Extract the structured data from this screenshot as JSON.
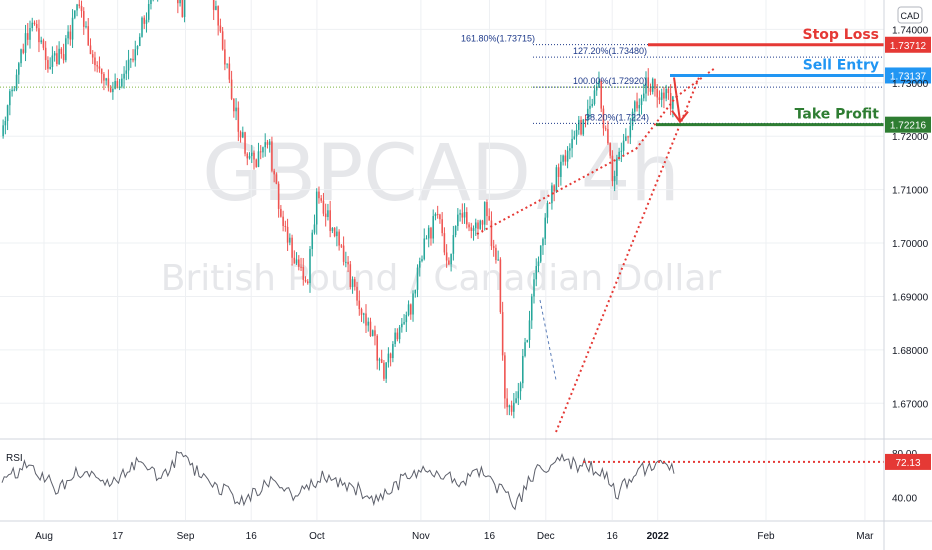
{
  "watermark": {
    "symbol": "GBPCAD, 4h",
    "description": "British Pound / Canadian Dollar"
  },
  "currency_box": "CAD",
  "annotations": {
    "stop_loss": {
      "label": "Stop Loss",
      "price": 1.73712,
      "badge": "1.73712",
      "color": "#e53935"
    },
    "sell_entry": {
      "label": "Sell Entry",
      "price": 1.73137,
      "badge": "1.73137",
      "color": "#2196f3"
    },
    "take_profit": {
      "label": "Take Profit",
      "price": 1.72216,
      "badge": "1.72216",
      "color": "#2e7d32"
    }
  },
  "fib_levels": [
    {
      "label": "161.80%(1.73715)",
      "price": 1.73715
    },
    {
      "label": "127.20%(1.73480)",
      "price": 1.7348
    },
    {
      "label": "100.00%(1.72920)",
      "price": 1.7292
    },
    {
      "label": "38.20%(1.7224)",
      "price": 1.7224
    }
  ],
  "rsi": {
    "title": "RSI",
    "value": 72.13,
    "badge": "72.13",
    "ticks": [
      {
        "value": 80,
        "label": "80.00"
      },
      {
        "value": 40,
        "label": "40.00"
      }
    ]
  },
  "colors": {
    "up": "#26a69a",
    "down": "#ef5350",
    "rsi_line": "#5d606b",
    "trend": "#e53935",
    "axis_text": "#131722",
    "grid": "#eef0f3"
  },
  "chart_data": {
    "type": "candlestick",
    "symbol": "GBPCAD",
    "interval": "4h",
    "price_axis": {
      "ticks": [
        {
          "value": 1.74,
          "label": "1.74000"
        },
        {
          "value": 1.73,
          "label": "1.73000"
        },
        {
          "value": 1.72,
          "label": "1.72000"
        },
        {
          "value": 1.71,
          "label": "1.71000"
        },
        {
          "value": 1.7,
          "label": "1.70000"
        },
        {
          "value": 1.69,
          "label": "1.69000"
        },
        {
          "value": 1.68,
          "label": "1.68000"
        },
        {
          "value": 1.67,
          "label": "1.67000"
        }
      ],
      "range": [
        1.6635,
        1.7455
      ]
    },
    "time_axis": {
      "labels": [
        "Aug",
        "17",
        "Sep",
        "16",
        "Oct",
        "Nov",
        "16",
        "Dec",
        "16",
        "2022",
        "Feb",
        "Mar"
      ],
      "label_positions": [
        0.0,
        0.102,
        0.196,
        0.287,
        0.378,
        0.522,
        0.617,
        0.695,
        0.787,
        0.85,
        1.0,
        1.137
      ]
    },
    "rsi_range": [
      20,
      90
    ],
    "keypoints": [
      [
        0.0,
        1.72
      ],
      [
        0.025,
        1.733
      ],
      [
        0.045,
        1.742
      ],
      [
        0.07,
        1.733
      ],
      [
        0.095,
        1.736
      ],
      [
        0.115,
        1.744
      ],
      [
        0.14,
        1.733
      ],
      [
        0.165,
        1.728
      ],
      [
        0.19,
        1.733
      ],
      [
        0.215,
        1.743
      ],
      [
        0.245,
        1.752
      ],
      [
        0.27,
        1.744
      ],
      [
        0.29,
        1.75
      ],
      [
        0.31,
        1.749
      ],
      [
        0.33,
        1.737
      ],
      [
        0.35,
        1.724
      ],
      [
        0.37,
        1.715
      ],
      [
        0.4,
        1.718
      ],
      [
        0.415,
        1.705
      ],
      [
        0.435,
        1.698
      ],
      [
        0.455,
        1.692
      ],
      [
        0.47,
        1.708
      ],
      [
        0.49,
        1.704
      ],
      [
        0.51,
        1.697
      ],
      [
        0.53,
        1.69
      ],
      [
        0.55,
        1.684
      ],
      [
        0.57,
        1.675
      ],
      [
        0.59,
        1.683
      ],
      [
        0.61,
        1.688
      ],
      [
        0.63,
        1.7
      ],
      [
        0.65,
        1.705
      ],
      [
        0.665,
        1.695
      ],
      [
        0.685,
        1.707
      ],
      [
        0.7,
        1.701
      ],
      [
        0.72,
        1.706
      ],
      [
        0.74,
        1.696
      ],
      [
        0.75,
        1.671
      ],
      [
        0.765,
        1.668
      ],
      [
        0.79,
        1.689
      ],
      [
        0.81,
        1.705
      ],
      [
        0.83,
        1.714
      ],
      [
        0.85,
        1.72
      ],
      [
        0.87,
        1.723
      ],
      [
        0.89,
        1.729
      ],
      [
        0.9,
        1.72
      ],
      [
        0.91,
        1.712
      ],
      [
        0.925,
        1.718
      ],
      [
        0.94,
        1.724
      ],
      [
        0.96,
        1.73
      ],
      [
        1.0,
        1.7262
      ]
    ],
    "rsi_keypoints": [
      [
        0.0,
        54
      ],
      [
        0.04,
        72
      ],
      [
        0.08,
        48
      ],
      [
        0.12,
        66
      ],
      [
        0.16,
        50
      ],
      [
        0.2,
        70
      ],
      [
        0.24,
        60
      ],
      [
        0.26,
        76
      ],
      [
        0.3,
        62
      ],
      [
        0.33,
        46
      ],
      [
        0.36,
        38
      ],
      [
        0.4,
        56
      ],
      [
        0.44,
        42
      ],
      [
        0.48,
        60
      ],
      [
        0.52,
        50
      ],
      [
        0.56,
        36
      ],
      [
        0.6,
        58
      ],
      [
        0.64,
        66
      ],
      [
        0.68,
        56
      ],
      [
        0.72,
        62
      ],
      [
        0.745,
        44
      ],
      [
        0.765,
        32
      ],
      [
        0.79,
        60
      ],
      [
        0.82,
        74
      ],
      [
        0.85,
        70
      ],
      [
        0.88,
        66
      ],
      [
        0.9,
        56
      ],
      [
        0.915,
        44
      ],
      [
        0.94,
        60
      ],
      [
        0.97,
        70
      ],
      [
        1.0,
        68
      ]
    ]
  }
}
